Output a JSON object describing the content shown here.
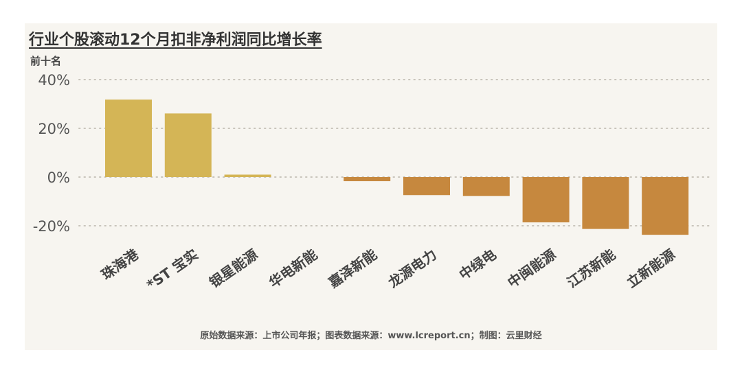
{
  "title": "行业个股滚动12个月扣非净利润同比增长率",
  "subtitle": "前十名",
  "source": "原始数据来源：上市公司年报；图表数据来源：www.lcreport.cn；制图：云里财经",
  "colors": {
    "positive": "#d4b556",
    "negative": "#c6883e",
    "grid": "#c8c4bb",
    "background": "#f7f5f0"
  },
  "chart_data": {
    "type": "bar",
    "categories": [
      "珠海港",
      "*ST 宝实",
      "银星能源",
      "华电新能",
      "嘉泽新能",
      "龙源电力",
      "中绿电",
      "中闽能源",
      "江苏新能",
      "立新能源"
    ],
    "values": [
      31.8,
      26.1,
      1.0,
      0.0,
      -1.7,
      -7.4,
      -7.8,
      -18.6,
      -21.3,
      -23.7
    ],
    "yticks": [
      "40%",
      "20%",
      "0%",
      "-20%"
    ],
    "ylim": [
      -25,
      45
    ],
    "grid": "dotted horizontal",
    "legend": "none"
  }
}
